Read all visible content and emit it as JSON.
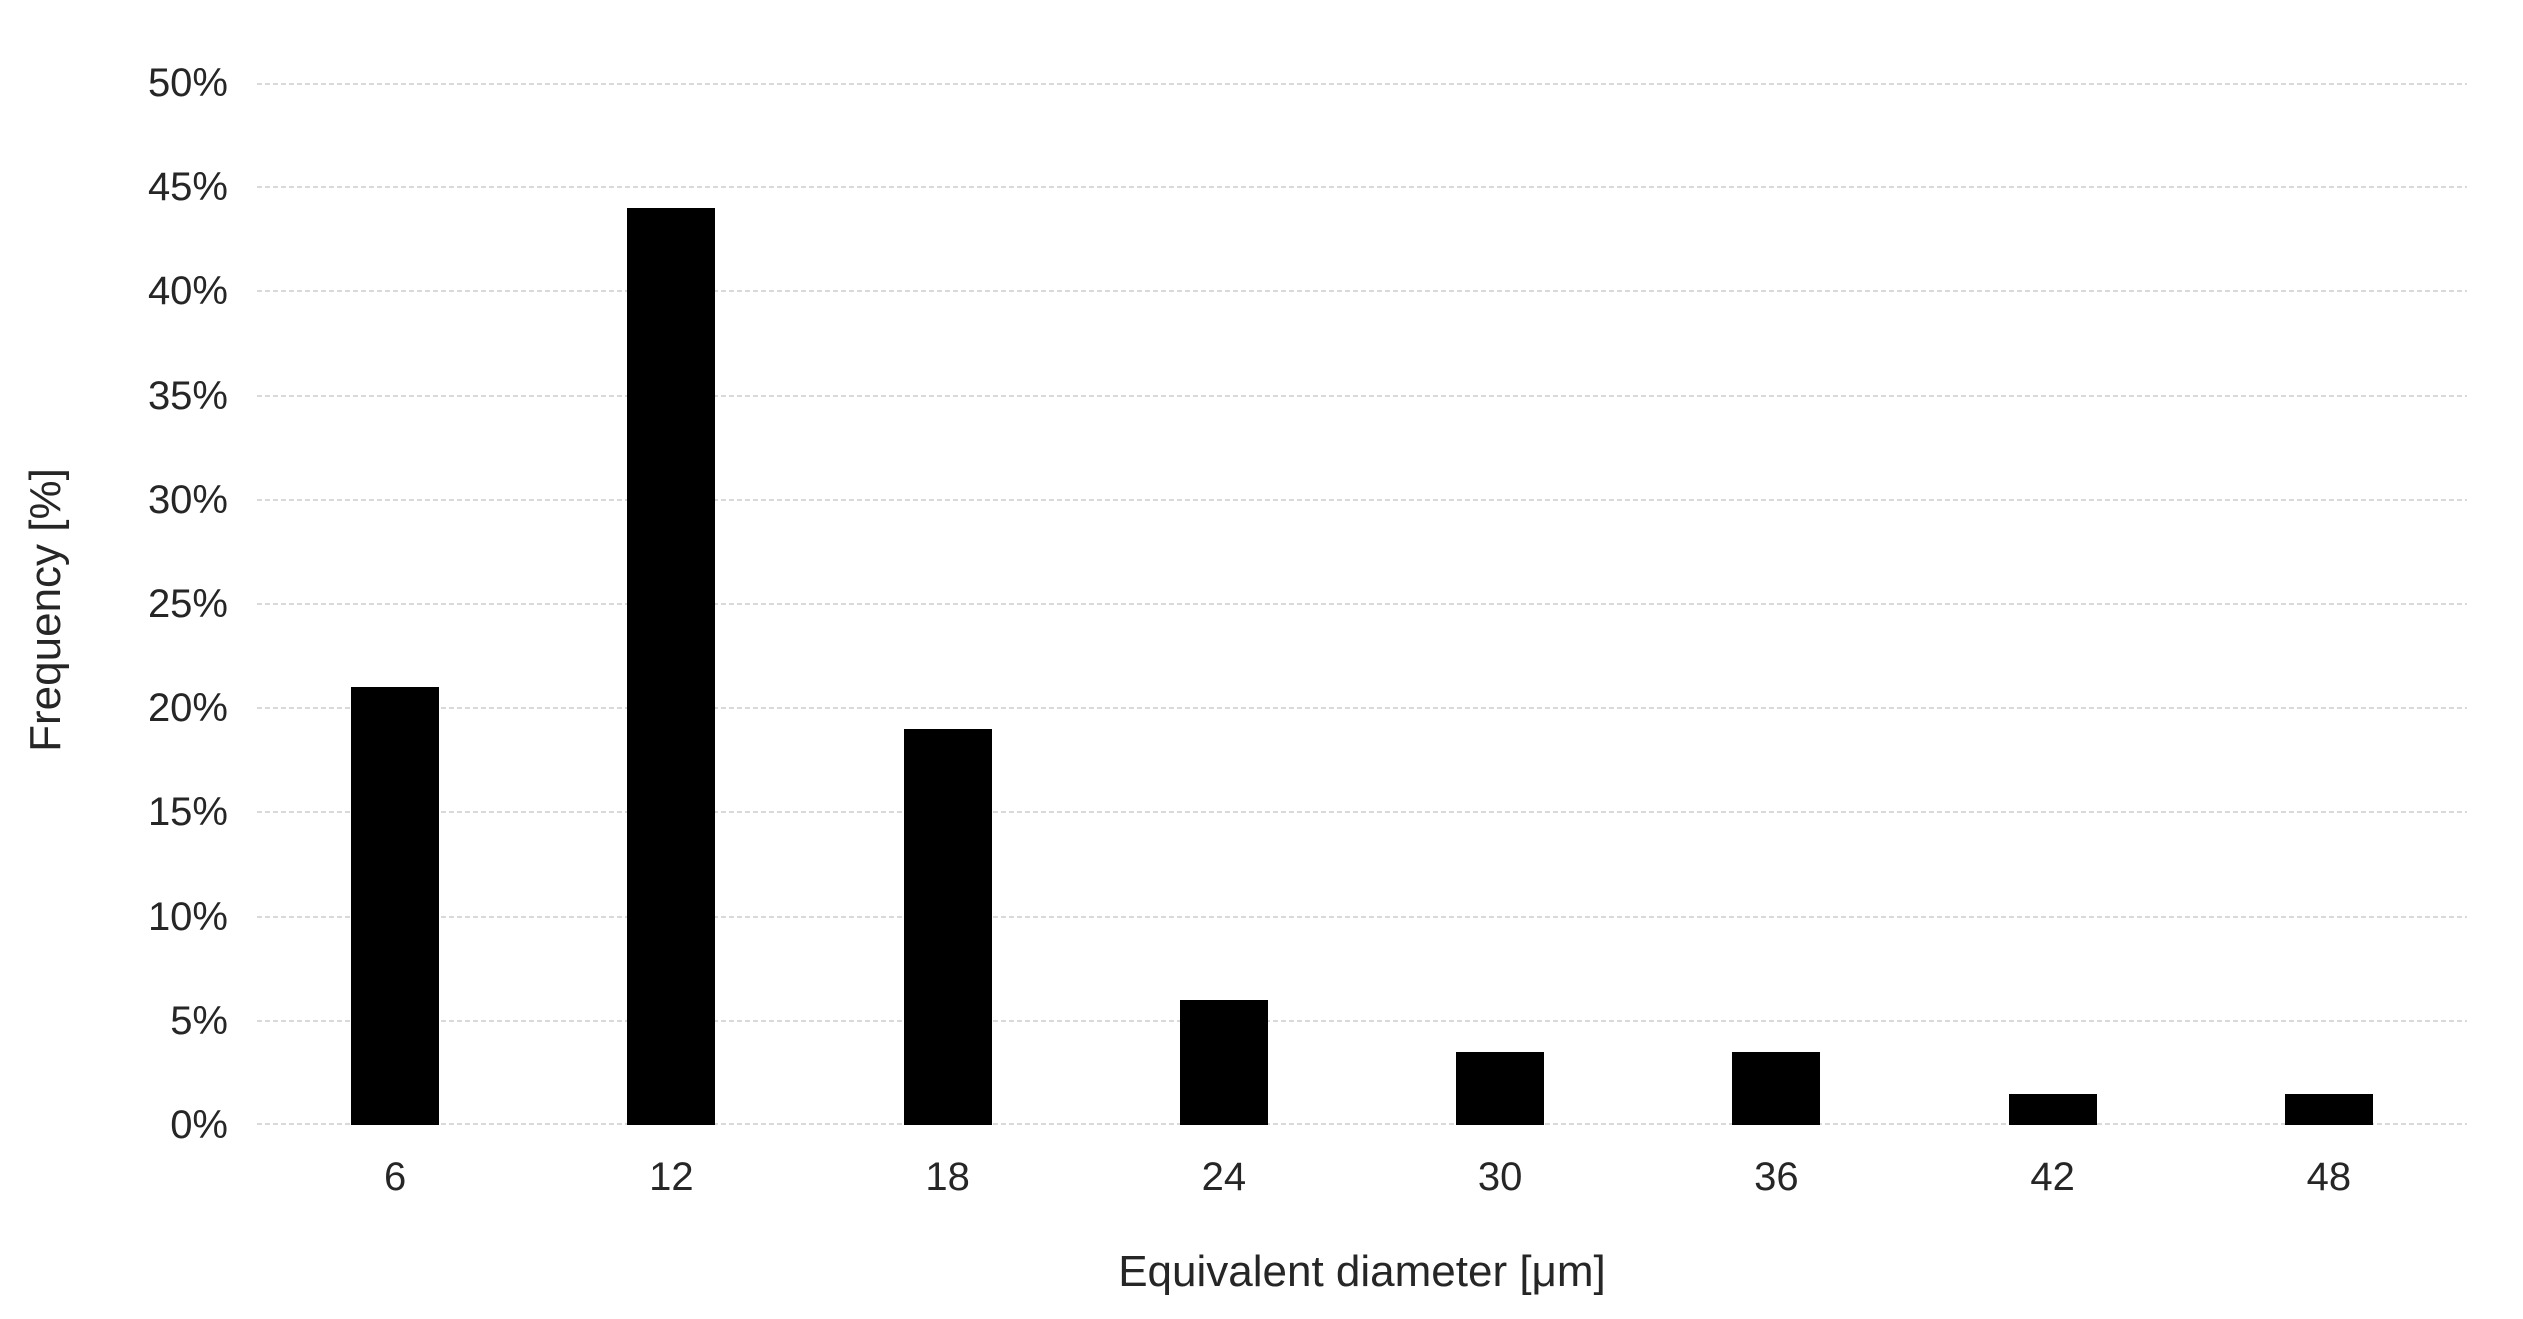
{
  "figure": {
    "background_color": "#ffffff",
    "bar_color": "#000000",
    "gridline_color": "#d9d9d9",
    "text_color": "#262626"
  },
  "chart_data": {
    "type": "bar",
    "title": "",
    "xlabel": "Equivalent diameter [μm]",
    "ylabel": "Frequency [%]",
    "categories": [
      "6",
      "12",
      "18",
      "24",
      "30",
      "36",
      "42",
      "48"
    ],
    "values": [
      21,
      44,
      19,
      6,
      3.5,
      3.5,
      1.5,
      1.5
    ],
    "value_unit": "%",
    "ylim": [
      0,
      50
    ],
    "ytick_step": 5,
    "ytick_labels": [
      "0%",
      "5%",
      "10%",
      "15%",
      "20%",
      "25%",
      "30%",
      "35%",
      "40%",
      "45%",
      "50%"
    ],
    "grid": "horizontal-dashed",
    "legend_position": "none"
  }
}
